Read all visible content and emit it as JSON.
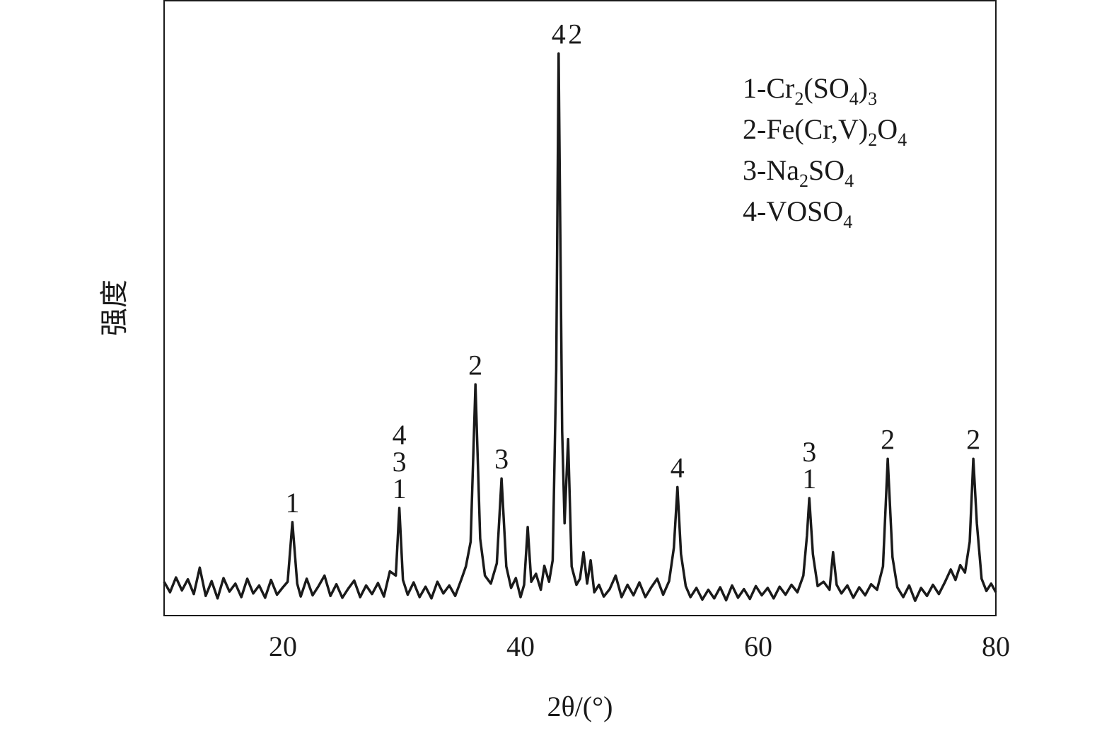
{
  "chart_data": {
    "type": "line",
    "x_label": "2θ/(°)",
    "y_label": "强度",
    "xlim": [
      10,
      80
    ],
    "ylim": [
      0,
      100
    ],
    "xticks": [
      20,
      40,
      60,
      80
    ],
    "legend": [
      "1-Cr2(SO4)3",
      "2-Fe(Cr,V)2O4",
      "3-Na2SO4",
      "4-VOSO4"
    ],
    "legend_position": "upper right",
    "annotations": [
      {
        "x": 20.8,
        "labels": [
          "1"
        ]
      },
      {
        "x": 29.8,
        "labels": [
          "4",
          "3",
          "1"
        ]
      },
      {
        "x": 36.2,
        "labels": [
          "2"
        ]
      },
      {
        "x": 38.4,
        "labels": [
          "3"
        ]
      },
      {
        "x": 43.2,
        "labels": [
          "4"
        ]
      },
      {
        "x": 44.6,
        "labels": [
          "2"
        ]
      },
      {
        "x": 53.2,
        "labels": [
          "4"
        ]
      },
      {
        "x": 64.3,
        "labels": [
          "3",
          "1"
        ]
      },
      {
        "x": 70.9,
        "labels": [
          "2"
        ]
      },
      {
        "x": 78.1,
        "labels": [
          "2"
        ]
      }
    ],
    "x": [
      10,
      10.5,
      11,
      11.5,
      12,
      12.5,
      13,
      13.5,
      14,
      14.5,
      15,
      15.5,
      16,
      16.5,
      17,
      17.5,
      18,
      18.5,
      19,
      19.5,
      20,
      20.4,
      20.8,
      21.2,
      21.5,
      22,
      22.5,
      23,
      23.5,
      24,
      24.5,
      25,
      25.5,
      26,
      26.5,
      27,
      27.5,
      28,
      28.5,
      29,
      29.5,
      29.8,
      30.1,
      30.5,
      31,
      31.5,
      32,
      32.5,
      33,
      33.5,
      34,
      34.5,
      35,
      35.4,
      35.8,
      36.2,
      36.6,
      37,
      37.5,
      38,
      38.4,
      38.8,
      39.2,
      39.6,
      40,
      40.3,
      40.6,
      40.9,
      41.3,
      41.7,
      42,
      42.4,
      42.7,
      43.0,
      43.2,
      43.5,
      43.7,
      44.0,
      44.3,
      44.7,
      45,
      45.3,
      45.6,
      45.9,
      46.2,
      46.6,
      47,
      47.5,
      48,
      48.5,
      49,
      49.5,
      50,
      50.5,
      51,
      51.5,
      52,
      52.5,
      52.9,
      53.2,
      53.5,
      53.9,
      54.3,
      54.8,
      55.3,
      55.8,
      56.3,
      56.8,
      57.3,
      57.8,
      58.3,
      58.8,
      59.3,
      59.8,
      60.3,
      60.8,
      61.3,
      61.8,
      62.3,
      62.8,
      63.3,
      63.8,
      64.1,
      64.3,
      64.6,
      65,
      65.5,
      66,
      66.3,
      66.6,
      67,
      67.5,
      68,
      68.5,
      69,
      69.5,
      70,
      70.5,
      70.9,
      71.3,
      71.7,
      72.2,
      72.7,
      73.2,
      73.7,
      74.2,
      74.7,
      75.2,
      75.7,
      76.2,
      76.6,
      77,
      77.4,
      77.8,
      78.1,
      78.4,
      78.8,
      79.2,
      79.6,
      80
    ],
    "series": [
      {
        "color": "#1a1a1a",
        "values": [
          5.5,
          3.8,
          6.2,
          4.1,
          5.9,
          3.5,
          7.8,
          3.2,
          5.6,
          2.8,
          6.1,
          3.9,
          5.2,
          3.0,
          6.0,
          3.6,
          4.9,
          2.9,
          5.8,
          3.4,
          4.6,
          5.5,
          15.2,
          5.2,
          3.1,
          6.0,
          3.3,
          4.8,
          6.5,
          3.2,
          5.1,
          2.9,
          4.4,
          5.7,
          3.0,
          4.9,
          3.5,
          5.3,
          3.1,
          7.2,
          6.5,
          17.5,
          5.8,
          3.4,
          5.4,
          3.0,
          4.7,
          2.8,
          5.5,
          3.6,
          4.9,
          3.2,
          5.8,
          8.0,
          12.0,
          37.6,
          12.5,
          6.5,
          5.2,
          8.5,
          22.3,
          8.0,
          4.5,
          6.1,
          3.0,
          5.0,
          14.4,
          5.5,
          6.8,
          4.2,
          8.1,
          5.5,
          9.0,
          40.0,
          91.4,
          30.0,
          15.0,
          28.7,
          8.0,
          5.0,
          6.0,
          10.3,
          5.2,
          9.0,
          3.8,
          5.0,
          3.1,
          4.3,
          6.5,
          3.0,
          5.0,
          3.3,
          5.4,
          3.0,
          4.6,
          6.0,
          3.4,
          5.6,
          11.0,
          20.9,
          10.0,
          4.8,
          3.0,
          4.5,
          2.6,
          4.2,
          2.8,
          4.6,
          2.5,
          4.9,
          2.9,
          4.3,
          2.7,
          4.8,
          3.3,
          4.5,
          2.8,
          4.7,
          3.4,
          5.0,
          3.8,
          6.5,
          13.0,
          19.1,
          10.0,
          4.8,
          5.5,
          4.2,
          10.3,
          5.0,
          3.6,
          4.9,
          2.9,
          4.6,
          3.3,
          5.1,
          4.2,
          8.0,
          25.5,
          9.5,
          4.6,
          3.0,
          4.9,
          2.4,
          4.5,
          3.2,
          5.0,
          3.5,
          5.4,
          7.5,
          5.8,
          8.2,
          7.0,
          12.0,
          25.5,
          15.0,
          6.0,
          4.0,
          5.2,
          3.8
        ]
      }
    ]
  }
}
